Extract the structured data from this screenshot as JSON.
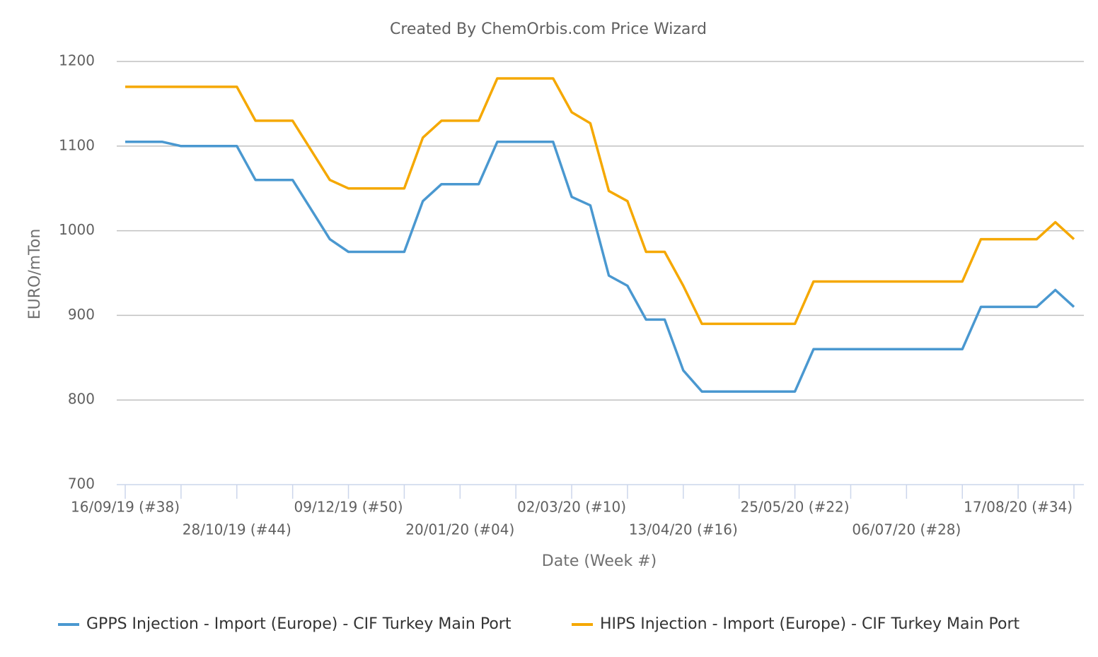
{
  "chart_data": {
    "type": "line",
    "title": "Created By ChemOrbis.com Price Wizard",
    "xlabel": "Date (Week #)",
    "ylabel": "EURO/mTon",
    "categories": [
      "16/09/19 (#38)",
      null,
      null,
      null,
      null,
      null,
      "28/10/19 (#44)",
      null,
      null,
      null,
      null,
      null,
      "09/12/19 (#50)",
      null,
      null,
      null,
      null,
      null,
      "20/01/20 (#04)",
      null,
      null,
      null,
      null,
      null,
      "02/03/20 (#10)",
      null,
      null,
      null,
      null,
      null,
      "13/04/20 (#16)",
      null,
      null,
      null,
      null,
      null,
      "25/05/20 (#22)",
      null,
      null,
      null,
      null,
      null,
      "06/07/20 (#28)",
      null,
      null,
      null,
      null,
      null,
      "17/08/20 (#34)",
      null,
      null,
      null
    ],
    "series": [
      {
        "name": "GPPS Injection - Import (Europe) - CIF Turkey Main Port",
        "color": "#4a98d0",
        "values": [
          1105,
          1105,
          1105,
          1100,
          1100,
          1100,
          1100,
          1060,
          1060,
          1060,
          1025,
          990,
          975,
          975,
          975,
          975,
          1035,
          1055,
          1055,
          1055,
          1105,
          1105,
          1105,
          1105,
          1040,
          1030,
          947,
          935,
          895,
          895,
          835,
          810,
          810,
          810,
          810,
          810,
          810,
          860,
          860,
          860,
          860,
          860,
          860,
          860,
          860,
          860,
          910,
          910,
          910,
          910,
          930,
          910
        ]
      },
      {
        "name": "HIPS Injection - Import (Europe) - CIF Turkey Main Port",
        "color": "#f5a800",
        "values": [
          1170,
          1170,
          1170,
          1170,
          1170,
          1170,
          1170,
          1130,
          1130,
          1130,
          1095,
          1060,
          1050,
          1050,
          1050,
          1050,
          1110,
          1130,
          1130,
          1130,
          1180,
          1180,
          1180,
          1180,
          1140,
          1127,
          1047,
          1035,
          975,
          975,
          935,
          890,
          890,
          890,
          890,
          890,
          890,
          940,
          940,
          940,
          940,
          940,
          940,
          940,
          940,
          940,
          990,
          990,
          990,
          990,
          1010,
          990
        ]
      }
    ],
    "ylim": [
      700,
      1200
    ],
    "yticks": [
      700,
      800,
      900,
      1000,
      1100,
      1200
    ],
    "grid": true
  }
}
